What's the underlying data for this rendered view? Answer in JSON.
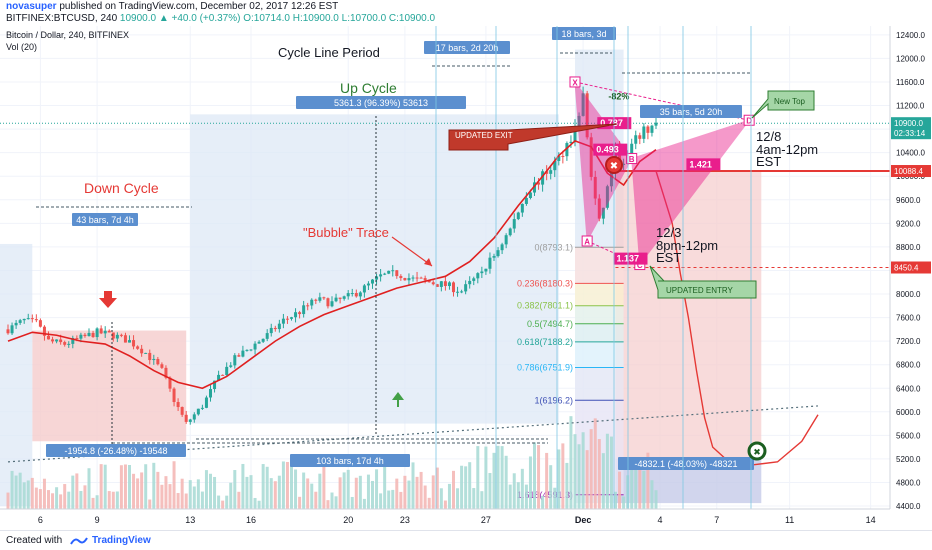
{
  "header": {
    "publisher": "novasuper",
    "published_text": "published on TradingView.com, December 02, 2017 12:26 EST",
    "symbol": "BITFINEX:BTCUSD, 240",
    "ohlc_text": "10900.0 ▲ +40.0 (+0.37%) O:10714.0 H:10900.0 L:10700.0 C:10900.0"
  },
  "footer": {
    "created": "Created with",
    "brand": "TradingView"
  },
  "colors": {
    "up": "#26a69a",
    "down": "#ef5350",
    "ma": "#e02020",
    "blue_box": "#dde8f6",
    "red_box": "#f5cccc",
    "pattern": "#e91e8c"
  },
  "chart_data": {
    "type": "candlestick",
    "title": "Bitcoin / Dollar, 240, BITFINEX",
    "volume_label": "Vol (20)",
    "xlabel": "",
    "ylabel": "",
    "ylim": [
      4350,
      12550
    ],
    "x_tick_labels": [
      "6",
      "9",
      "13",
      "16",
      "20",
      "23",
      "27",
      "Dec",
      "4",
      "7",
      "11",
      "14"
    ],
    "y_tick_labels": [
      "4400.0",
      "4800.0",
      "5200.0",
      "5600.0",
      "6000.0",
      "6400.0",
      "6800.0",
      "7200.0",
      "7600.0",
      "8000.0",
      "8400.0",
      "8800.0",
      "9200.0",
      "9600.0",
      "10000.0",
      "10400.0",
      "10800.0",
      "11200.0",
      "11600.0",
      "12000.0",
      "12400.0"
    ],
    "last_price": "10900.0",
    "countdown": "02:33:14",
    "price_tags": [
      "10088.4",
      "8450.4"
    ],
    "close_path": [
      [
        0,
        7400
      ],
      [
        4,
        7550
      ],
      [
        7,
        7500
      ],
      [
        10,
        7200
      ],
      [
        14,
        7150
      ],
      [
        18,
        7250
      ],
      [
        22,
        7350
      ],
      [
        26,
        7300
      ],
      [
        30,
        7200
      ],
      [
        34,
        7000
      ],
      [
        38,
        6700
      ],
      [
        41,
        6200
      ],
      [
        44,
        5800
      ],
      [
        48,
        6100
      ],
      [
        52,
        6600
      ],
      [
        56,
        6900
      ],
      [
        60,
        7100
      ],
      [
        64,
        7300
      ],
      [
        68,
        7550
      ],
      [
        72,
        7700
      ],
      [
        76,
        7900
      ],
      [
        80,
        7850
      ],
      [
        84,
        7950
      ],
      [
        88,
        8100
      ],
      [
        92,
        8300
      ],
      [
        96,
        8350
      ],
      [
        100,
        8250
      ],
      [
        104,
        8200
      ],
      [
        108,
        8150
      ],
      [
        112,
        8050
      ],
      [
        116,
        8300
      ],
      [
        120,
        8650
      ],
      [
        124,
        9100
      ],
      [
        128,
        9700
      ],
      [
        132,
        10000
      ],
      [
        136,
        10300
      ],
      [
        140,
        10800
      ],
      [
        142,
        11350
      ],
      [
        144,
        10000
      ],
      [
        146,
        9200
      ],
      [
        148,
        9800
      ],
      [
        150,
        10400
      ],
      [
        152,
        10150
      ],
      [
        154,
        10500
      ],
      [
        156,
        10700
      ],
      [
        158,
        10800
      ],
      [
        160,
        10900
      ]
    ],
    "moving_average_path": [
      [
        0,
        7200
      ],
      [
        6,
        7350
      ],
      [
        12,
        7300
      ],
      [
        18,
        7200
      ],
      [
        24,
        7150
      ],
      [
        30,
        6950
      ],
      [
        36,
        6700
      ],
      [
        42,
        6500
      ],
      [
        48,
        6400
      ],
      [
        54,
        6600
      ],
      [
        60,
        6900
      ],
      [
        66,
        7200
      ],
      [
        72,
        7450
      ],
      [
        78,
        7650
      ],
      [
        84,
        7800
      ],
      [
        90,
        7950
      ],
      [
        96,
        8100
      ],
      [
        102,
        8200
      ],
      [
        108,
        8300
      ],
      [
        114,
        8550
      ],
      [
        120,
        8950
      ],
      [
        126,
        9500
      ],
      [
        132,
        10000
      ],
      [
        136,
        10350
      ],
      [
        140,
        10600
      ],
      [
        144,
        10500
      ],
      [
        148,
        10050
      ],
      [
        152,
        9850
      ],
      [
        156,
        10250
      ],
      [
        160,
        10450
      ]
    ],
    "fibonacci_levels": [
      {
        "label": "0(8793.1)",
        "value": 8793.1
      },
      {
        "label": "0.236(8180.3)",
        "value": 8180.3
      },
      {
        "label": "0.382(7801.1)",
        "value": 7801.1
      },
      {
        "label": "0.5(7494.7)",
        "value": 7494.7
      },
      {
        "label": "0.618(7188.2)",
        "value": 7188.2
      },
      {
        "label": "0.786(6751.9)",
        "value": 6751.9
      },
      {
        "label": "1(6196.2)",
        "value": 6196.2
      },
      {
        "label": "1.618(4591.3)",
        "value": 4591.3
      }
    ],
    "pattern_ratios": [
      "-82%",
      "0.787",
      "0.493",
      "1.421",
      "1.137"
    ],
    "pattern_points": [
      "X",
      "A",
      "B",
      "C",
      "D"
    ],
    "projection_path": [
      [
        160,
        10088
      ],
      [
        164,
        9200
      ],
      [
        166,
        8350
      ],
      [
        168,
        7600
      ],
      [
        170,
        6700
      ],
      [
        172,
        5900
      ],
      [
        174,
        5400
      ],
      [
        178,
        5150
      ],
      [
        184,
        5100
      ],
      [
        190,
        5150
      ],
      [
        196,
        5500
      ],
      [
        200,
        5950
      ]
    ],
    "trendline": [
      [
        0,
        5150
      ],
      [
        200,
        6100
      ]
    ],
    "measure_labels": [
      "5361.3 (96.39%) 53613",
      "-1954.8 (-26.48%) -19548",
      "103 bars, 17d 4h",
      "43 bars, 7d 4h",
      "17 bars, 2d 20h",
      "18 bars, 3d",
      "35 bars, 5d 20h",
      "-4832.1 (-48.03%) -48321"
    ],
    "annotations": {
      "cycle_line_period": "Cycle Line Period",
      "up_cycle": "Up Cycle",
      "down_cycle": "Down Cycle",
      "bubble_trace": "\"Bubble\" Trace",
      "updated_exit": "UPDATED EXIT",
      "updated_entry": "UPDATED ENTRY",
      "new_top": "New Top",
      "date_12_8": "12/8",
      "time_12_8": "4am-12pm",
      "tz_12_8": "EST",
      "date_12_3": "12/3",
      "time_12_3": "8pm-12pm",
      "tz_12_3": "EST"
    }
  }
}
